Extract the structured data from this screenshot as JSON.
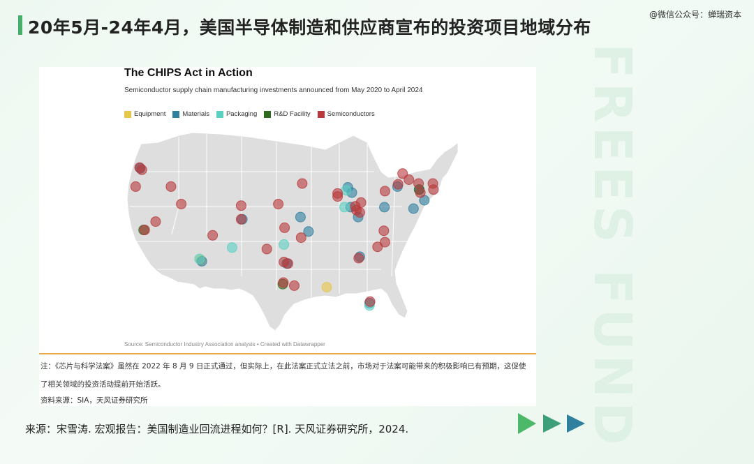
{
  "page": {
    "title": "20年5月-24年4月，美国半导体制造和供应商宣布的投资项目地域分布",
    "wechat": "@微信公众号：蝉瑞资本",
    "watermark": "FREES FUND",
    "bottom_source": "来源：宋雪涛. 宏观报告：美国制造业回流进程如何？[R]. 天风证券研究所，2024."
  },
  "card": {
    "title": "The CHIPS Act in Action",
    "subtitle": "Semiconductor supply chain manufacturing investments announced from May 2020 to April 2024",
    "source": "Source: Semiconductor Industry Association analysis • Created with Datawrapper",
    "note": "注：《芯片与科学法案》虽然在 2022 年 8 月 9 日正式通过，但实际上，在此法案正式立法之前，市场对于法案可能带来的积极影响已有预期，这促使了相关领域的投资活动提前开始活跃。",
    "data_source": "资料来源：SIA，天风证券研究所"
  },
  "legend": [
    {
      "label": "Equipment",
      "color": "#e6c74a"
    },
    {
      "label": "Materials",
      "color": "#2f7f9e"
    },
    {
      "label": "Packaging",
      "color": "#5ccfc3"
    },
    {
      "label": "R&D Facility",
      "color": "#2e6b1f"
    },
    {
      "label": "Semiconductors",
      "color": "#b8383b"
    }
  ],
  "colors": {
    "accent_green": "#46b06a",
    "divider": "#e7a84a",
    "arrows": [
      "#4cb86a",
      "#3d9f7a",
      "#2f7f9e"
    ]
  },
  "chart_data": {
    "type": "scatter",
    "title": "The CHIPS Act in Action",
    "series": [
      {
        "name": "Equipment",
        "points": [
          [
            -112.1,
            33.5
          ],
          [
            -90.0,
            29.9
          ]
        ]
      },
      {
        "name": "Materials",
        "points": [
          [
            -122.7,
            45.5
          ],
          [
            -111.9,
            33.3
          ],
          [
            -104.8,
            38.8
          ],
          [
            -97.0,
            33.0
          ],
          [
            -94.6,
            39.1
          ],
          [
            -93.2,
            37.2
          ],
          [
            -86.3,
            43.0
          ],
          [
            -85.6,
            42.3
          ],
          [
            -85.8,
            40.4
          ],
          [
            -84.5,
            39.1
          ],
          [
            -84.2,
            33.9
          ],
          [
            -82.5,
            27.8
          ],
          [
            -79.9,
            40.4
          ],
          [
            -74.8,
            40.2
          ],
          [
            -73.8,
            42.7
          ],
          [
            -72.9,
            41.3
          ],
          [
            -77.6,
            43.1
          ]
        ]
      },
      {
        "name": "Packaging",
        "points": [
          [
            -112.3,
            33.6
          ],
          [
            -106.6,
            35.1
          ],
          [
            -97.5,
            35.5
          ],
          [
            -86.9,
            40.4
          ],
          [
            -86.6,
            42.6
          ],
          [
            -82.5,
            27.5
          ]
        ]
      },
      {
        "name": "R&D Facility",
        "points": [
          [
            -122.1,
            37.4
          ],
          [
            -97.7,
            30.3
          ],
          [
            -73.8,
            42.7
          ]
        ]
      },
      {
        "name": "Semiconductors",
        "points": [
          [
            -122.8,
            45.6
          ],
          [
            -122.4,
            45.3
          ],
          [
            -123.5,
            43.1
          ],
          [
            -117.3,
            43.1
          ],
          [
            -121.9,
            37.4
          ],
          [
            -120.0,
            38.5
          ],
          [
            -115.5,
            40.8
          ],
          [
            -110.0,
            36.7
          ],
          [
            -105.0,
            40.6
          ],
          [
            -105.0,
            38.8
          ],
          [
            -100.5,
            34.9
          ],
          [
            -98.5,
            40.8
          ],
          [
            -97.4,
            37.7
          ],
          [
            -96.8,
            33.0
          ],
          [
            -97.6,
            30.5
          ],
          [
            -97.5,
            33.2
          ],
          [
            -95.7,
            30.1
          ],
          [
            -94.5,
            36.4
          ],
          [
            -94.3,
            43.5
          ],
          [
            -88.1,
            41.8
          ],
          [
            -85.0,
            40.5
          ],
          [
            -84.8,
            40.0
          ],
          [
            -84.4,
            33.7
          ],
          [
            -84.2,
            39.7
          ],
          [
            -84.0,
            41.0
          ],
          [
            -81.1,
            35.2
          ],
          [
            -80.0,
            37.3
          ],
          [
            -79.8,
            35.8
          ],
          [
            -82.4,
            28.0
          ],
          [
            -79.8,
            42.5
          ],
          [
            -77.5,
            43.4
          ],
          [
            -76.7,
            44.8
          ],
          [
            -75.6,
            44.0
          ],
          [
            -73.9,
            43.5
          ],
          [
            -73.6,
            42.3
          ],
          [
            -71.3,
            42.7
          ],
          [
            -71.4,
            43.5
          ],
          [
            -88.1,
            42.2
          ]
        ]
      }
    ]
  }
}
